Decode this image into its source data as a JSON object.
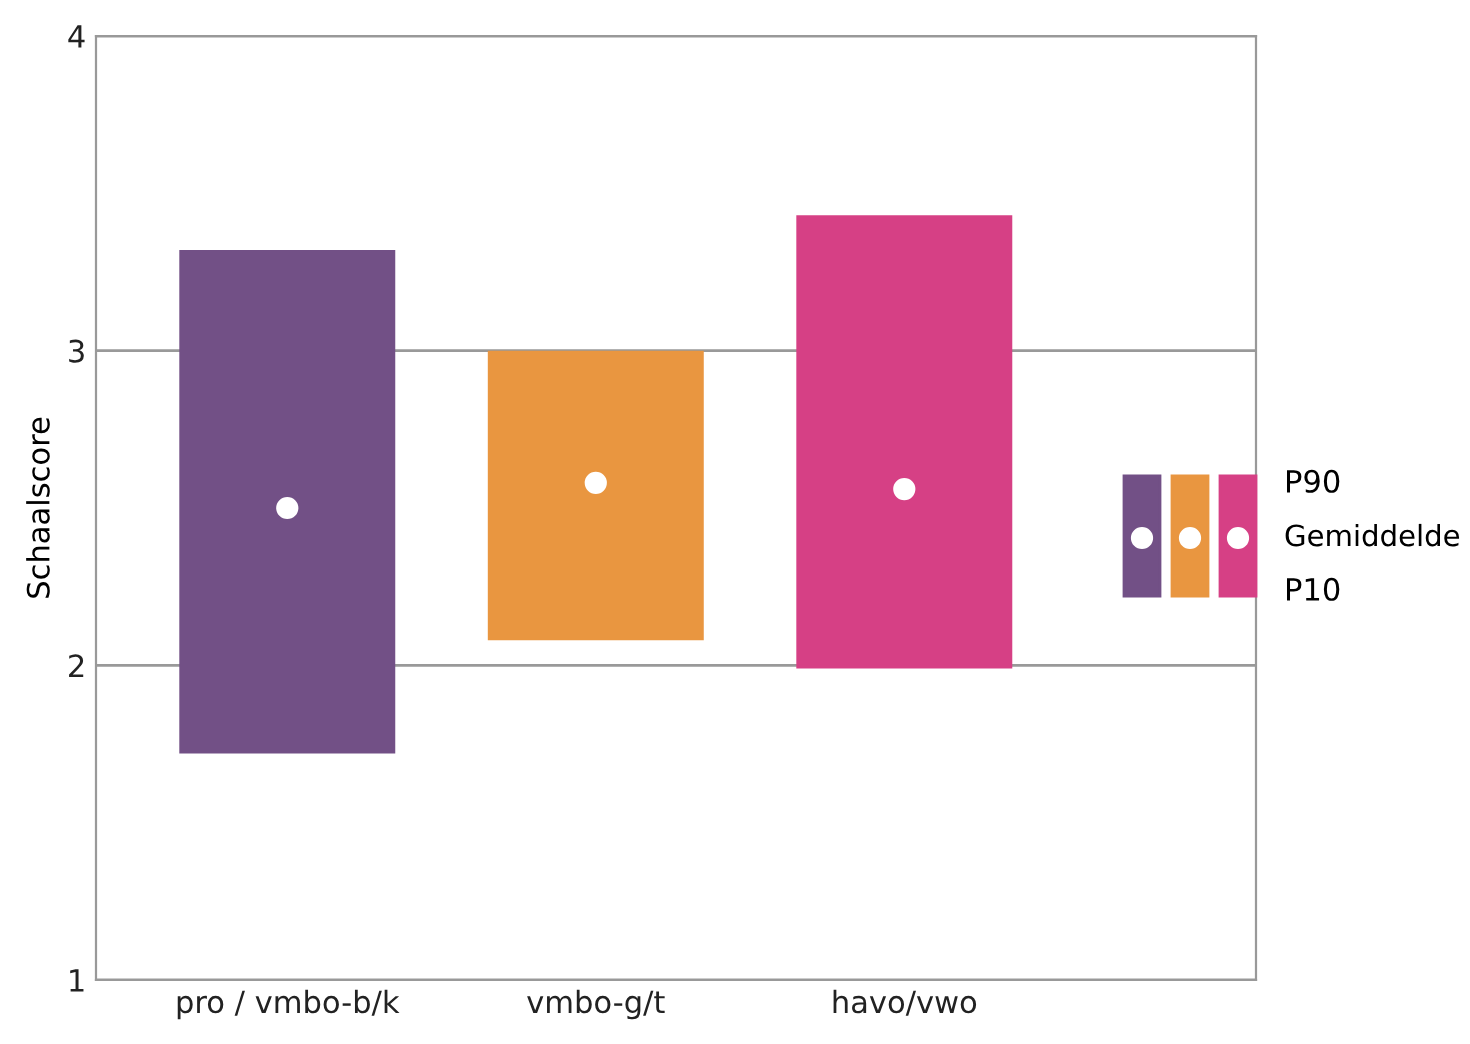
{
  "chart_data": {
    "type": "bar",
    "ylabel": "Schaalscore",
    "categories": [
      "pro / vmbo-b/k",
      "vmbo-g/t",
      "havo/vwo"
    ],
    "series": [
      {
        "colors": [
          "#725086",
          "#e99640",
          "#d64085"
        ],
        "base": [
          1.72,
          2.08,
          1.99
        ],
        "values": [
          1.6,
          0.92,
          1.44
        ]
      },
      {
        "type": "scatter",
        "name": "Gemiddelde",
        "color": "#ffffff",
        "x": [
          "pro / vmbo-b/k",
          "vmbo-g/t",
          "havo/vwo"
        ],
        "values": [
          2.5,
          2.58,
          2.56
        ]
      }
    ],
    "ylim": [
      1,
      4
    ],
    "yticks": [
      1,
      2,
      3,
      4
    ],
    "grid": "y",
    "legend": "right",
    "marker": "circle",
    "annotations": [
      "P90",
      "P10"
    ]
  }
}
